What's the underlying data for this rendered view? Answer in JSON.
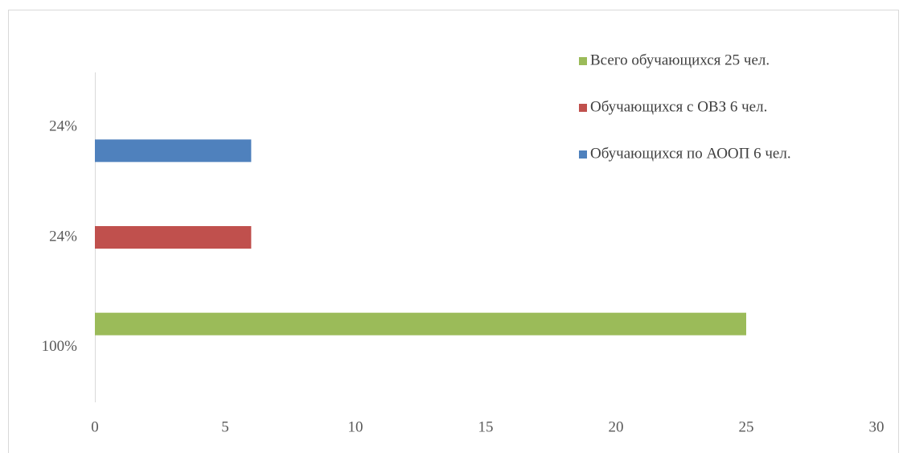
{
  "chart_data": {
    "type": "bar",
    "orientation": "horizontal",
    "categories": [
      "100%",
      "24%",
      "24%"
    ],
    "series": [
      {
        "name": "Всего обучающихся 25 чел.",
        "color": "#9bbb59",
        "values": [
          25,
          null,
          null
        ]
      },
      {
        "name": "Обучающихся с ОВЗ 6 чел.",
        "color": "#c0504d",
        "values": [
          null,
          6,
          null
        ]
      },
      {
        "name": "Обучающихся по АООП 6 чел.",
        "color": "#4f81bd",
        "values": [
          null,
          null,
          6
        ]
      }
    ],
    "xlim": [
      0,
      30
    ],
    "xticks": [
      0,
      5,
      10,
      15,
      20,
      25,
      30
    ],
    "grid": false,
    "legend": "upper right"
  }
}
